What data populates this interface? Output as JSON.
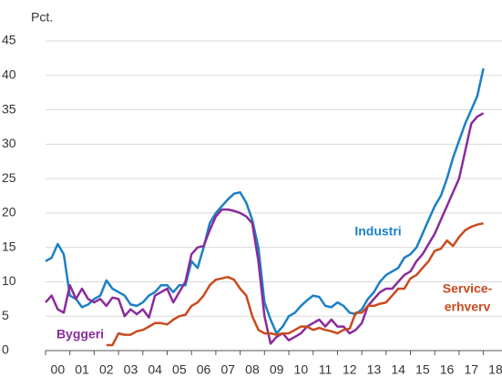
{
  "chart_data": {
    "type": "line",
    "y_label": "Pct.",
    "x": [
      0,
      0.25,
      0.5,
      0.75,
      1,
      1.25,
      1.5,
      1.75,
      2,
      2.25,
      2.5,
      2.75,
      3,
      3.25,
      3.5,
      3.75,
      4,
      4.25,
      4.5,
      4.75,
      5,
      5.25,
      5.5,
      5.75,
      6,
      6.25,
      6.5,
      6.75,
      7,
      7.25,
      7.5,
      7.75,
      8,
      8.25,
      8.5,
      8.75,
      9,
      9.25,
      9.5,
      9.75,
      10,
      10.25,
      10.5,
      10.75,
      11,
      11.25,
      11.5,
      11.75,
      12,
      12.25,
      12.5,
      12.75,
      13,
      13.25,
      13.5,
      13.75,
      14,
      14.25,
      14.5,
      14.75,
      15,
      15.25,
      15.5,
      15.75,
      16,
      16.25,
      16.5,
      16.75,
      17,
      17.25,
      17.5,
      17.75,
      18
    ],
    "series": [
      {
        "name": [
          "Industri"
        ],
        "color": "#1b80c4",
        "values": [
          13,
          13.5,
          15.5,
          14,
          8,
          7.5,
          6.3,
          6.7,
          7.5,
          8,
          10.2,
          9,
          8.5,
          8,
          6.7,
          6.5,
          7,
          8,
          8.5,
          9.5,
          9.5,
          8.5,
          9.5,
          9.5,
          13,
          12,
          15,
          18.5,
          20,
          21,
          22,
          22.8,
          23,
          21.5,
          19,
          15,
          7,
          4.5,
          2.5,
          3.5,
          5,
          5.5,
          6.5,
          7.3,
          8,
          7.8,
          6.5,
          6.3,
          7,
          6.5,
          5.5,
          5.3,
          6,
          7.5,
          8.5,
          10,
          11,
          11.5,
          12,
          13.5,
          14,
          15,
          17,
          19,
          21,
          22.5,
          25,
          28,
          30.5,
          33,
          35,
          37,
          41
        ]
      },
      {
        "name": [
          "Byggeri"
        ],
        "color": "#8a2b9c",
        "values": [
          7,
          8,
          6,
          5.5,
          9.5,
          7.5,
          9,
          7.5,
          7,
          7.5,
          6.5,
          7.7,
          7.5,
          5,
          6,
          5.3,
          6,
          4.8,
          8,
          8.5,
          9,
          7,
          8.5,
          10,
          14,
          15,
          15.2,
          17.5,
          19.5,
          20.5,
          20.5,
          20.3,
          20,
          19.5,
          18.5,
          13,
          5,
          1,
          2,
          2.5,
          1.5,
          2,
          2.5,
          3.5,
          4,
          4.5,
          3.5,
          4.5,
          3.5,
          3.5,
          2.5,
          3,
          4,
          6.5,
          7.5,
          8.5,
          9,
          9,
          10,
          11,
          11.5,
          13,
          14,
          15.5,
          17,
          19,
          21,
          23,
          25,
          29,
          33,
          34,
          34.5
        ]
      },
      {
        "name": [
          "Service-",
          "erhverv"
        ],
        "color": "#c94a1f",
        "values": [
          null,
          null,
          null,
          null,
          null,
          null,
          null,
          null,
          null,
          null,
          0.8,
          0.8,
          2.5,
          2.3,
          2.3,
          2.8,
          3,
          3.5,
          4,
          4,
          3.8,
          4.5,
          5,
          5.2,
          6.5,
          7,
          8,
          9.5,
          10.3,
          10.5,
          10.7,
          10.3,
          9,
          8,
          5,
          3,
          2.5,
          2.5,
          2.3,
          2.5,
          2.5,
          3,
          3.5,
          3.5,
          3,
          3.3,
          3,
          2.8,
          2.5,
          3,
          3.2,
          5.5,
          5.5,
          6.5,
          6.5,
          6.8,
          7,
          8,
          9,
          9,
          10.5,
          11,
          12,
          13,
          14.5,
          14.8,
          16,
          15.2,
          16.5,
          17.5,
          18,
          18.3,
          18.5
        ]
      }
    ],
    "xlim": [
      0,
      18.3
    ],
    "xticks": [
      {
        "value": 0.5,
        "label": "00"
      },
      {
        "value": 1.5,
        "label": "01"
      },
      {
        "value": 2.5,
        "label": "02"
      },
      {
        "value": 3.5,
        "label": "03"
      },
      {
        "value": 4.5,
        "label": "04"
      },
      {
        "value": 5.5,
        "label": "05"
      },
      {
        "value": 6.5,
        "label": "06"
      },
      {
        "value": 7.5,
        "label": "07"
      },
      {
        "value": 8.5,
        "label": "08"
      },
      {
        "value": 9.5,
        "label": "09"
      },
      {
        "value": 10.5,
        "label": "10"
      },
      {
        "value": 11.5,
        "label": "11"
      },
      {
        "value": 12.5,
        "label": "12"
      },
      {
        "value": 13.5,
        "label": "13"
      },
      {
        "value": 14.5,
        "label": "14"
      },
      {
        "value": 15.5,
        "label": "15"
      },
      {
        "value": 16.5,
        "label": "16"
      },
      {
        "value": 17.5,
        "label": "17"
      },
      {
        "value": 18.5,
        "label": "18"
      }
    ],
    "ylim": [
      0,
      45
    ],
    "yticks": [
      0,
      5,
      10,
      15,
      20,
      25,
      30,
      35,
      40,
      45
    ],
    "grid": true
  }
}
